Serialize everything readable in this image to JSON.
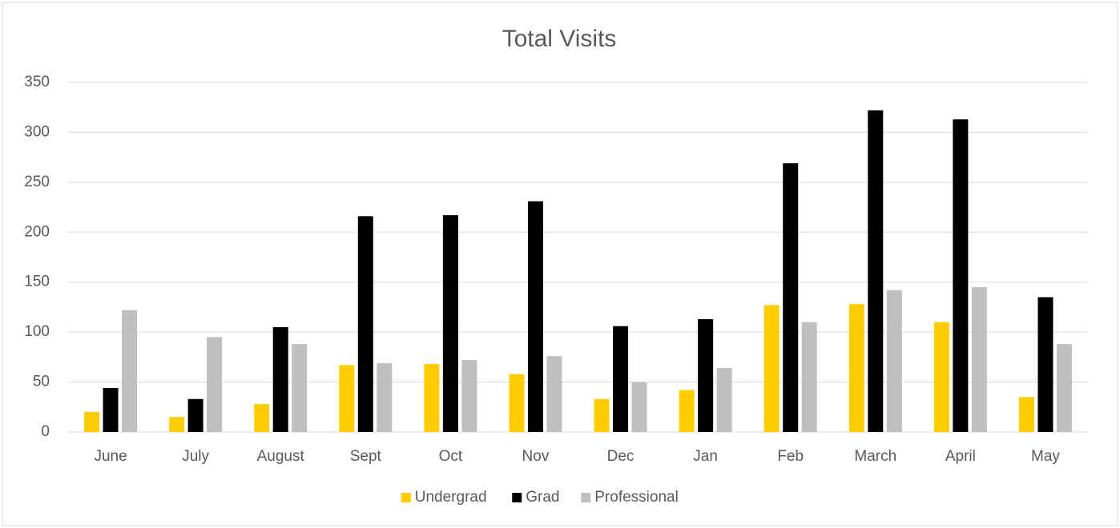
{
  "chart_data": {
    "type": "bar",
    "title": "Total Visits",
    "categories": [
      "June",
      "July",
      "August",
      "Sept",
      "Oct",
      "Nov",
      "Dec",
      "Jan",
      "Feb",
      "March",
      "April",
      "May"
    ],
    "series": [
      {
        "name": "Undergrad",
        "color": "#ffcc00",
        "values": [
          20,
          15,
          28,
          67,
          68,
          58,
          33,
          42,
          127,
          128,
          110,
          35
        ]
      },
      {
        "name": "Grad",
        "color": "#000000",
        "values": [
          44,
          33,
          105,
          216,
          217,
          231,
          106,
          113,
          269,
          322,
          313,
          135
        ]
      },
      {
        "name": "Professional",
        "color": "#bfbfbf",
        "values": [
          122,
          95,
          88,
          69,
          72,
          76,
          50,
          64,
          110,
          142,
          145,
          88
        ]
      }
    ],
    "ylim": [
      0,
      350
    ],
    "yticks": [
      0,
      50,
      100,
      150,
      200,
      250,
      300,
      350
    ],
    "grid": true,
    "legend": "bottom"
  }
}
